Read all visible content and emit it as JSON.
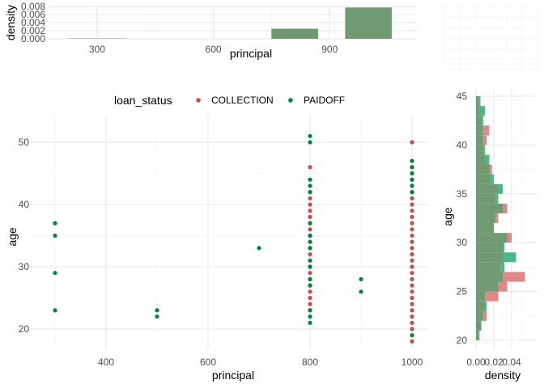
{
  "chart_data": [
    {
      "type": "bar",
      "role": "top-marginal-histogram",
      "xlabel": "principal",
      "ylabel": "density",
      "xlim": [
        175,
        1125
      ],
      "ylim": [
        0,
        0.008
      ],
      "xticks": [
        300,
        600,
        900
      ],
      "yticks": [
        0.0,
        0.002,
        0.004,
        0.006,
        0.008
      ],
      "ytick_labels": [
        "0.000",
        "0.002",
        "0.004",
        "0.006",
        "0.008"
      ],
      "grid": true,
      "bins": [
        {
          "x0": 225,
          "x1": 375,
          "paidoff": 8e-05,
          "collection": 0.0
        },
        {
          "x0": 750,
          "x1": 870,
          "paidoff": 0.0025,
          "collection": 0.0
        },
        {
          "x0": 940,
          "x1": 1060,
          "paidoff": 0.0076,
          "collection": 0.0078
        }
      ]
    },
    {
      "type": "scatter",
      "role": "main-plot",
      "xlabel": "principal",
      "ylabel": "age",
      "xlim": [
        290,
        1010
      ],
      "ylim": [
        17,
        53
      ],
      "xticks": [
        400,
        600,
        800,
        1000
      ],
      "yticks": [
        20,
        30,
        40,
        50
      ],
      "grid": true,
      "legend": {
        "title": "loan_status",
        "position": "top",
        "entries": [
          "COLLECTION",
          "PAIDOFF"
        ]
      },
      "series": [
        {
          "name": "COLLECTION",
          "color": "#c0504d",
          "points": [
            [
              800,
              46
            ],
            [
              800,
              42
            ],
            [
              800,
              41
            ],
            [
              800,
              40
            ],
            [
              800,
              39
            ],
            [
              800,
              38
            ],
            [
              800,
              37
            ],
            [
              800,
              36
            ],
            [
              800,
              35
            ],
            [
              800,
              34
            ],
            [
              800,
              33
            ],
            [
              800,
              32
            ],
            [
              800,
              31
            ],
            [
              800,
              30
            ],
            [
              800,
              29
            ],
            [
              800,
              28
            ],
            [
              800,
              27
            ],
            [
              800,
              26
            ],
            [
              800,
              25
            ],
            [
              800,
              24
            ],
            [
              800,
              23
            ],
            [
              1000,
              50
            ],
            [
              1000,
              46
            ],
            [
              1000,
              45
            ],
            [
              1000,
              44
            ],
            [
              1000,
              43
            ],
            [
              1000,
              42
            ],
            [
              1000,
              41
            ],
            [
              1000,
              40
            ],
            [
              1000,
              39
            ],
            [
              1000,
              38
            ],
            [
              1000,
              37
            ],
            [
              1000,
              36
            ],
            [
              1000,
              35
            ],
            [
              1000,
              34
            ],
            [
              1000,
              33
            ],
            [
              1000,
              32
            ],
            [
              1000,
              31
            ],
            [
              1000,
              30
            ],
            [
              1000,
              29
            ],
            [
              1000,
              28
            ],
            [
              1000,
              27
            ],
            [
              1000,
              26
            ],
            [
              1000,
              25
            ],
            [
              1000,
              24
            ],
            [
              1000,
              23
            ],
            [
              1000,
              22
            ],
            [
              1000,
              21
            ],
            [
              1000,
              20
            ],
            [
              1000,
              18
            ]
          ]
        },
        {
          "name": "PAIDOFF",
          "color": "#00843d",
          "points": [
            [
              300,
              37
            ],
            [
              300,
              35
            ],
            [
              300,
              29
            ],
            [
              300,
              23
            ],
            [
              500,
              23
            ],
            [
              500,
              22
            ],
            [
              700,
              33
            ],
            [
              800,
              51
            ],
            [
              800,
              50
            ],
            [
              800,
              44
            ],
            [
              800,
              43
            ],
            [
              800,
              42
            ],
            [
              800,
              37
            ],
            [
              800,
              35
            ],
            [
              800,
              34
            ],
            [
              800,
              33
            ],
            [
              800,
              31
            ],
            [
              800,
              30
            ],
            [
              800,
              28
            ],
            [
              800,
              27
            ],
            [
              800,
              23
            ],
            [
              800,
              22
            ],
            [
              800,
              21
            ],
            [
              900,
              28
            ],
            [
              900,
              26
            ],
            [
              1000,
              47
            ],
            [
              1000,
              46
            ],
            [
              1000,
              45
            ],
            [
              1000,
              44
            ],
            [
              1000,
              43
            ],
            [
              1000,
              42
            ],
            [
              1000,
              19
            ]
          ]
        }
      ]
    },
    {
      "type": "bar",
      "role": "right-marginal-histogram",
      "orientation": "horizontal",
      "xlabel": "density",
      "ylabel": "age",
      "xlim": [
        -0.003,
        0.057
      ],
      "ylim": [
        19.8,
        46.5
      ],
      "xticks": [
        0.0,
        0.02,
        0.04
      ],
      "xtick_labels": [
        "0.00",
        "0.02",
        "0.04"
      ],
      "yticks": [
        20,
        25,
        30,
        35,
        40,
        45
      ],
      "grid": true,
      "bins": [
        {
          "y0": 20,
          "y1": 21,
          "paidoff": 0.004,
          "collection": 0.003
        },
        {
          "y0": 21,
          "y1": 22,
          "paidoff": 0.006,
          "collection": 0.006
        },
        {
          "y0": 22,
          "y1": 23,
          "paidoff": 0.008,
          "collection": 0.012
        },
        {
          "y0": 23,
          "y1": 24,
          "paidoff": 0.012,
          "collection": 0.01
        },
        {
          "y0": 24,
          "y1": 25,
          "paidoff": 0.01,
          "collection": 0.025
        },
        {
          "y0": 25,
          "y1": 26,
          "paidoff": 0.025,
          "collection": 0.035
        },
        {
          "y0": 26,
          "y1": 27,
          "paidoff": 0.03,
          "collection": 0.055
        },
        {
          "y0": 27,
          "y1": 28,
          "paidoff": 0.032,
          "collection": 0.028
        },
        {
          "y0": 28,
          "y1": 29,
          "paidoff": 0.045,
          "collection": 0.03
        },
        {
          "y0": 29,
          "y1": 30,
          "paidoff": 0.032,
          "collection": 0.03
        },
        {
          "y0": 30,
          "y1": 31,
          "paidoff": 0.035,
          "collection": 0.04
        },
        {
          "y0": 31,
          "y1": 32,
          "paidoff": 0.02,
          "collection": 0.02
        },
        {
          "y0": 32,
          "y1": 33,
          "paidoff": 0.022,
          "collection": 0.025
        },
        {
          "y0": 33,
          "y1": 34,
          "paidoff": 0.03,
          "collection": 0.035
        },
        {
          "y0": 34,
          "y1": 35,
          "paidoff": 0.025,
          "collection": 0.022
        },
        {
          "y0": 35,
          "y1": 36,
          "paidoff": 0.03,
          "collection": 0.025
        },
        {
          "y0": 36,
          "y1": 37,
          "paidoff": 0.02,
          "collection": 0.015
        },
        {
          "y0": 37,
          "y1": 38,
          "paidoff": 0.015,
          "collection": 0.018
        },
        {
          "y0": 38,
          "y1": 39,
          "paidoff": 0.015,
          "collection": 0.01
        },
        {
          "y0": 39,
          "y1": 40,
          "paidoff": 0.01,
          "collection": 0.008
        },
        {
          "y0": 40,
          "y1": 41,
          "paidoff": 0.008,
          "collection": 0.012
        },
        {
          "y0": 41,
          "y1": 42,
          "paidoff": 0.008,
          "collection": 0.015
        },
        {
          "y0": 42,
          "y1": 43,
          "paidoff": 0.008,
          "collection": 0.006
        },
        {
          "y0": 43,
          "y1": 44,
          "paidoff": 0.01,
          "collection": 0.004
        },
        {
          "y0": 44,
          "y1": 45,
          "paidoff": 0.005,
          "collection": 0.003
        }
      ]
    }
  ],
  "colors": {
    "collection": "#c0504d",
    "paidoff": "#00843d",
    "collection_bar": "#e08888",
    "paidoff_bar": "#4db887",
    "overlap_bar": "#6f9a72",
    "grid_major": "#e6e6e6",
    "grid_minor": "#f2f2f2"
  }
}
